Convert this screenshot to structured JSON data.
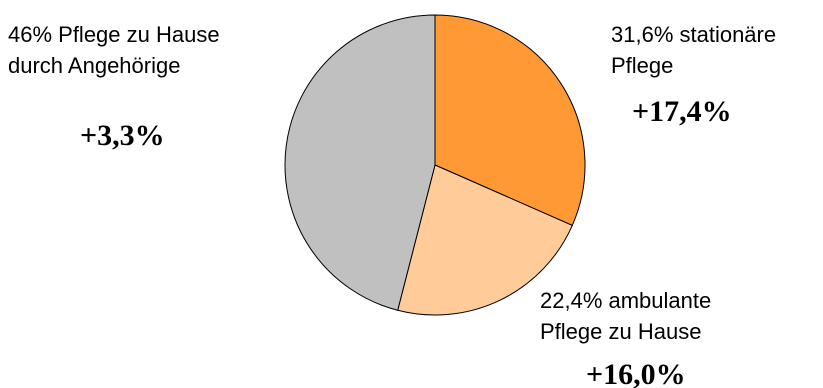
{
  "chart_data": {
    "type": "pie",
    "slices": [
      {
        "value": 31.6,
        "label_lines": [
          "31,6% stationäre",
          "Pflege"
        ],
        "change": "+17,4%",
        "color": "#FF9933"
      },
      {
        "value": 22.4,
        "label_lines": [
          "22,4% ambulante",
          "Pflege zu Hause"
        ],
        "change": "+16,0%",
        "color": "#FFCC99"
      },
      {
        "value": 46,
        "label_lines": [
          "46% Pflege zu Hause",
          "durch Angehörige"
        ],
        "change": "+3,3%",
        "color": "#C0C0C0"
      }
    ],
    "start_angle": "12 o'clock",
    "direction": "clockwise",
    "outline_color": "#000000",
    "legend": "none"
  }
}
